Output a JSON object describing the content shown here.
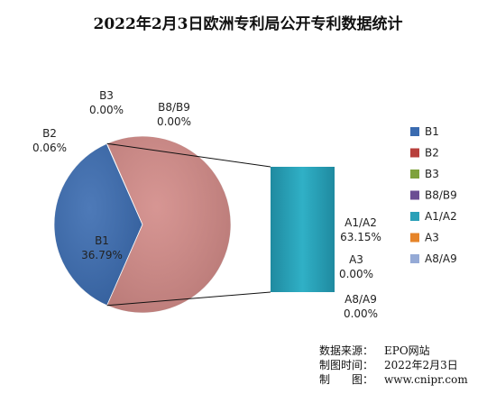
{
  "chart_data": {
    "type": "pie",
    "subtype": "bar-of-pie",
    "title": "2022年2月3日欧洲专利局公开专利数据统计",
    "slices": [
      {
        "name": "B1",
        "percent": 36.79,
        "label": "36.79%",
        "color": "#3a6bb0"
      },
      {
        "name": "B2",
        "percent": 0.06,
        "label": "0.06%",
        "color": "#b8403c"
      },
      {
        "name": "B3",
        "percent": 0.0,
        "label": "0.00%",
        "color": "#7ea23c"
      },
      {
        "name": "B8/B9",
        "percent": 0.0,
        "label": "0.00%",
        "color": "#6b4e93"
      },
      {
        "name": "A1/A2",
        "percent": 63.15,
        "label": "63.15%",
        "color": "#2aa0b8"
      },
      {
        "name": "A3",
        "percent": 0.0,
        "label": "0.00%",
        "color": "#e68429"
      },
      {
        "name": "A8/A9",
        "percent": 0.0,
        "label": "0.00%",
        "color": "#95aad6"
      }
    ],
    "pie_slice_color": "#d28a87",
    "bar_color": "#2aa0b8",
    "legend_position": "right"
  },
  "source": {
    "rows": [
      {
        "key": "数据来源：",
        "value": "EPO网站"
      },
      {
        "key": "制图时间：",
        "value": "2022年2月3日"
      },
      {
        "key": "制　　图：",
        "value": "www.cnipr.com"
      }
    ]
  }
}
